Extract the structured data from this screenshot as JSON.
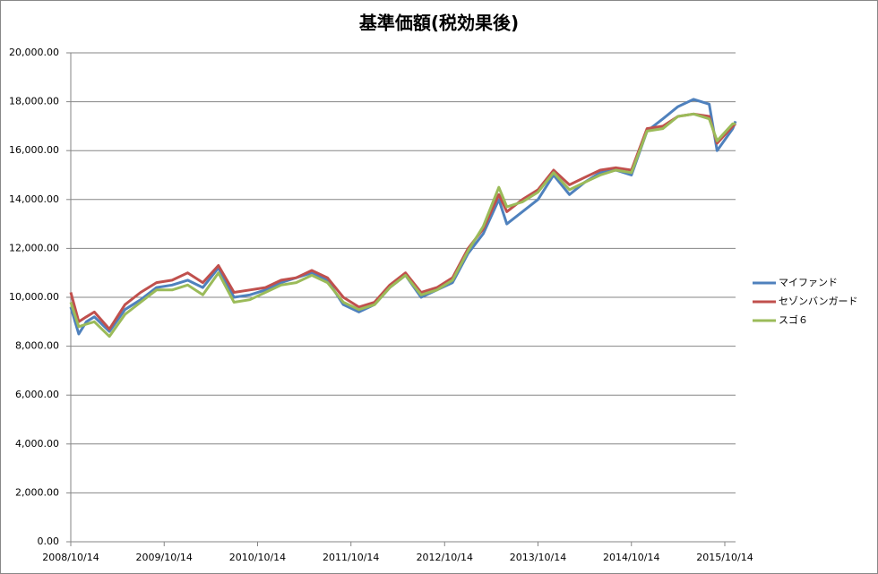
{
  "chart_data": {
    "type": "line",
    "title": "基準価額(税効果後)",
    "x": [
      "2008/10/14",
      "2008/11/14",
      "2008/12/14",
      "2009/01/14",
      "2009/03/14",
      "2009/05/14",
      "2009/07/14",
      "2009/09/14",
      "2009/11/14",
      "2010/01/14",
      "2010/03/14",
      "2010/05/14",
      "2010/07/14",
      "2010/09/14",
      "2010/11/14",
      "2011/01/14",
      "2011/03/14",
      "2011/05/14",
      "2011/07/14",
      "2011/09/14",
      "2011/11/14",
      "2012/01/14",
      "2012/03/14",
      "2012/05/14",
      "2012/07/14",
      "2012/09/14",
      "2012/11/14",
      "2013/01/14",
      "2013/03/14",
      "2013/05/14",
      "2013/06/14",
      "2013/08/14",
      "2013/10/14",
      "2013/12/14",
      "2014/02/14",
      "2014/04/14",
      "2014/06/14",
      "2014/08/14",
      "2014/10/14",
      "2014/12/14",
      "2015/02/14",
      "2015/04/14",
      "2015/06/14",
      "2015/08/14",
      "2015/09/14",
      "2015/11/14",
      "2015/11/25"
    ],
    "series": [
      {
        "name": "マイファンド",
        "color": "#4f81bd",
        "values": [
          9600,
          8500,
          9000,
          9200,
          8600,
          9500,
          9900,
          10400,
          10500,
          10700,
          10400,
          11200,
          10000,
          10100,
          10300,
          10600,
          10800,
          11000,
          10700,
          9700,
          9400,
          9700,
          10400,
          10900,
          10000,
          10300,
          10600,
          11800,
          12600,
          14000,
          13000,
          13500,
          14000,
          15000,
          14200,
          14700,
          15100,
          15200,
          15000,
          16800,
          17300,
          17800,
          18100,
          17900,
          16000,
          16900,
          17200
        ]
      },
      {
        "name": "セゾンバンガード",
        "color": "#c0504d",
        "values": [
          10200,
          9000,
          9200,
          9400,
          8700,
          9700,
          10200,
          10600,
          10700,
          11000,
          10600,
          11300,
          10200,
          10300,
          10400,
          10700,
          10800,
          11100,
          10800,
          10000,
          9600,
          9800,
          10500,
          11000,
          10200,
          10400,
          10800,
          12000,
          12800,
          14200,
          13500,
          14000,
          14400,
          15200,
          14600,
          14900,
          15200,
          15300,
          15200,
          16900,
          17000,
          17400,
          17500,
          17400,
          16300,
          17000,
          17100
        ]
      },
      {
        "name": "スゴ６",
        "color": "#9bbb59",
        "values": [
          9800,
          8800,
          8900,
          9000,
          8400,
          9300,
          9800,
          10300,
          10300,
          10500,
          10100,
          11000,
          9800,
          9900,
          10200,
          10500,
          10600,
          10900,
          10600,
          9800,
          9500,
          9700,
          10400,
          10900,
          10100,
          10300,
          10700,
          11900,
          12900,
          14500,
          13700,
          13900,
          14300,
          15100,
          14400,
          14700,
          15000,
          15200,
          15100,
          16800,
          16900,
          17400,
          17500,
          17300,
          16400,
          17100,
          17100
        ]
      }
    ],
    "xlim": [
      "2008/10/14",
      "2015/11/25"
    ],
    "xticks": [
      "2008/10/14",
      "2009/10/14",
      "2010/10/14",
      "2011/10/14",
      "2012/10/14",
      "2013/10/14",
      "2014/10/14",
      "2015/10/14"
    ],
    "ylim": [
      0,
      20000
    ],
    "yticks": [
      {
        "value": 0,
        "label": "0.00"
      },
      {
        "value": 2000,
        "label": "2,000.00"
      },
      {
        "value": 4000,
        "label": "4,000.00"
      },
      {
        "value": 6000,
        "label": "6,000.00"
      },
      {
        "value": 8000,
        "label": "8,000.00"
      },
      {
        "value": 10000,
        "label": "10,000.00"
      },
      {
        "value": 12000,
        "label": "12,000.00"
      },
      {
        "value": 14000,
        "label": "14,000.00"
      },
      {
        "value": 16000,
        "label": "16,000.00"
      },
      {
        "value": 18000,
        "label": "18,000.00"
      },
      {
        "value": 20000,
        "label": "20,000.00"
      }
    ],
    "grid": true,
    "legend": "right"
  }
}
